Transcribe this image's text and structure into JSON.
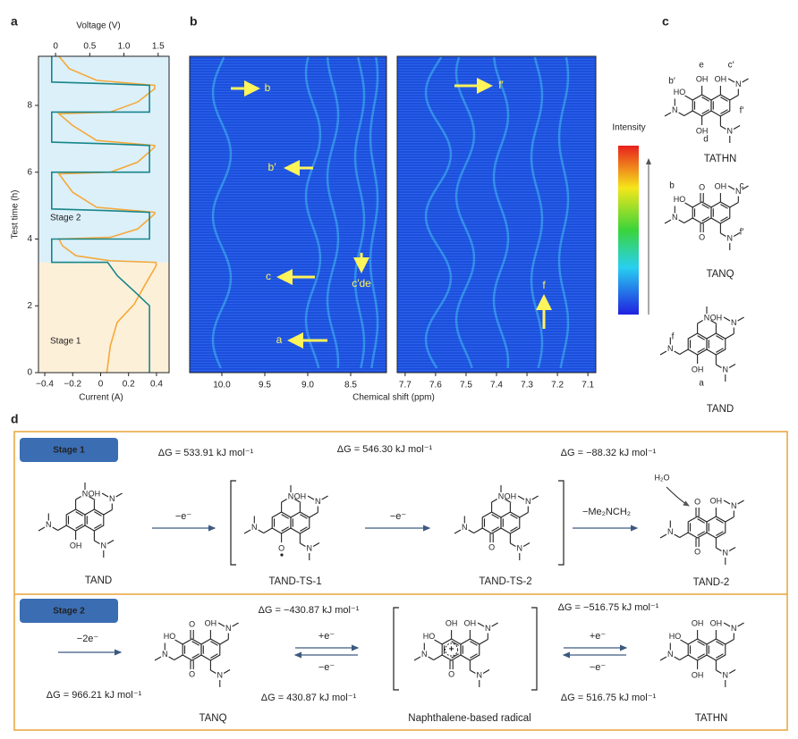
{
  "panel_labels": [
    "a",
    "b",
    "c",
    "d"
  ],
  "panel_a": {
    "top_axis_label": "Voltage (V)",
    "bottom_axis_label": "Current (A)",
    "y_axis_label": "Test time (h)",
    "top_xlim": [
      -0.25,
      1.66
    ],
    "top_xticks": [
      0,
      0.5,
      {
        "value": 1,
        "label": "1.0"
      },
      1.5
    ],
    "bottom_xlim": [
      -0.445,
      0.49
    ],
    "bottom_xticks": [
      {
        "value": -0.4,
        "label": "−0.4"
      },
      {
        "value": -0.2,
        "label": "−0.2"
      },
      0,
      0.2,
      0.4
    ],
    "ylim": [
      0,
      9.47
    ],
    "yticks": [
      0,
      2,
      4,
      6,
      8
    ],
    "stages": [
      {
        "label": "Stage 1",
        "range": [
          0,
          3.3
        ],
        "color": "#fdf0d8"
      },
      {
        "label": "Stage 2",
        "range": [
          3.3,
          9.47
        ],
        "color": "#dcf0fa"
      }
    ],
    "series": [
      {
        "axis": "top",
        "color": "#f5a93a",
        "values": [
          0.75,
          0.8,
          0.9,
          1.15,
          1.3,
          1.47,
          1.47,
          0.8,
          0.3,
          0.1,
          0.05,
          0.8,
          1.2,
          1.45,
          1.45,
          0.6,
          0.25,
          0.05,
          0.8,
          1.2,
          1.45,
          1.45,
          0.6,
          0.25,
          0.05,
          0.8,
          1.2,
          1.45,
          1.45,
          0.6,
          0.2,
          0.05
        ],
        "time": [
          0,
          0.8,
          1.5,
          2.05,
          2.6,
          3.2,
          3.3,
          3.35,
          3.5,
          3.8,
          4.0,
          4.05,
          4.3,
          4.75,
          4.8,
          4.95,
          5.4,
          5.95,
          6.0,
          6.3,
          6.75,
          6.8,
          6.95,
          7.4,
          7.75,
          7.8,
          8.1,
          8.5,
          8.6,
          8.75,
          9.1,
          9.47
        ]
      },
      {
        "axis": "bottom",
        "color": "#17868a",
        "values": [
          0.35,
          0.35,
          0.25,
          0.12,
          0.05,
          -0.35,
          -0.35,
          0.35,
          0.35,
          0.05,
          -0.35,
          -0.35,
          0.35,
          0.35,
          0.05,
          -0.35,
          -0.35,
          0.35,
          0.35,
          0.05,
          -0.35,
          -0.35
        ],
        "time": [
          0,
          2.0,
          2.4,
          2.9,
          3.3,
          3.3,
          4.0,
          4.0,
          4.8,
          4.85,
          4.9,
          6.0,
          6.0,
          6.8,
          6.85,
          6.9,
          7.8,
          7.8,
          8.6,
          8.65,
          8.7,
          9.47
        ]
      }
    ]
  },
  "panel_b": {
    "x_axis_label": "Chemical shift (ppm)",
    "left": {
      "xlim": [
        10.375,
        8.083
      ],
      "xticks": [
        {
          "value": 10,
          "label": "10.0"
        },
        9.5,
        {
          "value": 9,
          "label": "9.0"
        },
        8.5
      ]
    },
    "right": {
      "xlim": [
        7.726,
        7.074
      ],
      "xticks": [
        7.7,
        7.6,
        7.5,
        7.4,
        7.3,
        7.2,
        7.1
      ]
    },
    "colorbar_label": "Intensity",
    "annotations": [
      "b",
      "b′",
      "c",
      "c′de",
      "a",
      "f′",
      "f"
    ]
  },
  "panel_c": {
    "molecules": [
      {
        "name": "TATHN",
        "atoms": [
          "OH",
          "OH",
          "HO",
          "N",
          "N",
          "OH",
          "N"
        ],
        "letters": [
          "e",
          "c′",
          "b′",
          "f′",
          "d"
        ]
      },
      {
        "name": "TANQ",
        "atoms": [
          "O",
          "OH",
          "HO",
          "N",
          "N",
          "O",
          "N"
        ],
        "letters": [
          "b",
          "c",
          "f′"
        ]
      },
      {
        "name": "TAND",
        "atoms": [
          "N",
          "OH",
          "N",
          "N",
          "OH",
          "N"
        ],
        "letters": [
          "f",
          "a"
        ]
      }
    ]
  },
  "panel_d": {
    "stage1": {
      "badge": "Stage 1",
      "energies": [
        "ΔG = 533.91 kJ mol⁻¹",
        "ΔG = 546.30 kJ mol⁻¹",
        "ΔG = −88.32 kJ mol⁻¹"
      ],
      "steps": [
        "−e⁻",
        "−e⁻",
        "−Me₂NCH₂"
      ],
      "water": "H₂O",
      "molecules": [
        {
          "name": "TAND",
          "atoms": [
            "N",
            "OH",
            "N",
            "N",
            "OH",
            "N"
          ]
        },
        {
          "name": "TAND-TS-1",
          "atoms": [
            "N",
            "OH",
            "N",
            "N",
            "O",
            "N"
          ]
        },
        {
          "name": "TAND-TS-2",
          "atoms": [
            "N",
            "OH",
            "N",
            "N",
            "O",
            "N"
          ]
        },
        {
          "name": "TAND-2",
          "atoms": [
            "O",
            "OH",
            "N",
            "N",
            "O",
            "N"
          ]
        }
      ]
    },
    "stage2": {
      "badge": "Stage 2",
      "step": "−2e⁻",
      "energies": [
        "ΔG = 966.21 kJ mol⁻¹",
        "ΔG = −430.87 kJ mol⁻¹",
        "ΔG = 430.87 kJ mol⁻¹",
        "ΔG = −516.75 kJ mol⁻¹",
        "ΔG = 516.75 kJ mol⁻¹"
      ],
      "couples": [
        "+e⁻",
        "−e⁻",
        "+e⁻",
        "−e⁻"
      ],
      "radical_sign": "+",
      "molecules": [
        {
          "name": "TANQ",
          "atoms": [
            "O",
            "OH",
            "HO",
            "N",
            "N",
            "O",
            "N"
          ]
        },
        {
          "name": "Naphthalene-based radical",
          "atoms": [
            "OH",
            "OH",
            "HO",
            "N",
            "N",
            "O",
            "N"
          ]
        },
        {
          "name": "TATHN",
          "atoms": [
            "OH",
            "OH",
            "HO",
            "N",
            "N",
            "OH",
            "N"
          ]
        }
      ]
    }
  }
}
